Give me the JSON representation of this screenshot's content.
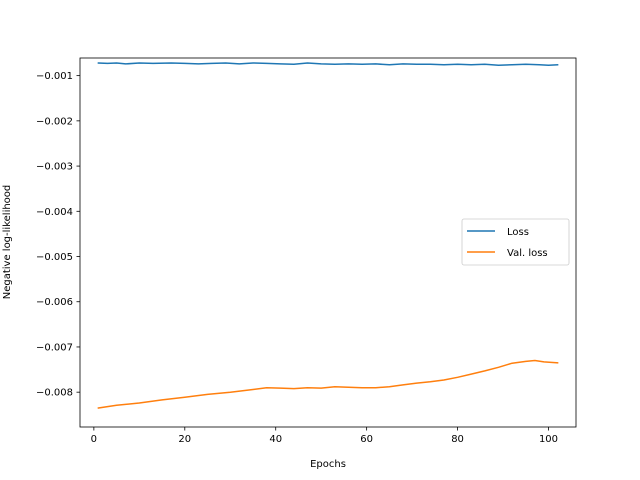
{
  "chart_data": {
    "type": "line",
    "title": "",
    "xlabel": "Epochs",
    "ylabel": "Negative log-likelihood",
    "xlim": [
      -3.05,
      106.05
    ],
    "ylim": [
      -0.00877,
      -0.00061
    ],
    "x_ticks": [
      0,
      20,
      40,
      60,
      80,
      100
    ],
    "x_tick_labels": [
      "0",
      "20",
      "40",
      "60",
      "80",
      "100"
    ],
    "y_ticks": [
      -0.008,
      -0.007,
      -0.006,
      -0.005,
      -0.004,
      -0.003,
      -0.002,
      -0.001
    ],
    "y_tick_labels": [
      "−0.008",
      "−0.007",
      "−0.006",
      "−0.005",
      "−0.004",
      "−0.003",
      "−0.002",
      "−0.001"
    ],
    "grid": false,
    "legend_position": "center-right",
    "series": [
      {
        "name": "Loss",
        "color": "#1f77b4",
        "x": [
          1,
          3,
          5,
          7,
          10,
          13,
          17,
          20,
          23,
          26,
          29,
          32,
          35,
          38,
          41,
          44,
          47,
          50,
          53,
          56,
          59,
          62,
          65,
          68,
          71,
          74,
          77,
          80,
          83,
          86,
          89,
          92,
          95,
          98,
          100,
          102
        ],
        "y": [
          -0.00072,
          -0.00073,
          -0.00072,
          -0.00074,
          -0.00072,
          -0.00073,
          -0.00072,
          -0.00073,
          -0.00074,
          -0.00073,
          -0.00072,
          -0.00074,
          -0.00072,
          -0.00073,
          -0.00074,
          -0.00075,
          -0.00072,
          -0.00074,
          -0.00075,
          -0.00074,
          -0.00075,
          -0.00074,
          -0.00076,
          -0.00074,
          -0.00075,
          -0.00075,
          -0.00076,
          -0.00075,
          -0.00076,
          -0.00075,
          -0.00077,
          -0.00076,
          -0.00075,
          -0.00076,
          -0.00077,
          -0.00076
        ]
      },
      {
        "name": "Val. loss",
        "color": "#ff7f0e",
        "x": [
          1,
          5,
          10,
          15,
          20,
          25,
          30,
          35,
          38,
          41,
          44,
          47,
          50,
          53,
          56,
          59,
          62,
          65,
          68,
          71,
          74,
          77,
          80,
          83,
          86,
          89,
          92,
          95,
          97,
          99,
          102
        ],
        "y": [
          -0.00835,
          -0.00829,
          -0.00824,
          -0.00817,
          -0.00811,
          -0.00805,
          -0.008,
          -0.00794,
          -0.0079,
          -0.00791,
          -0.00792,
          -0.0079,
          -0.00791,
          -0.00788,
          -0.00789,
          -0.0079,
          -0.0079,
          -0.00788,
          -0.00784,
          -0.0078,
          -0.00777,
          -0.00773,
          -0.00767,
          -0.0076,
          -0.00753,
          -0.00745,
          -0.00736,
          -0.00732,
          -0.0073,
          -0.00733,
          -0.00735
        ]
      }
    ]
  }
}
